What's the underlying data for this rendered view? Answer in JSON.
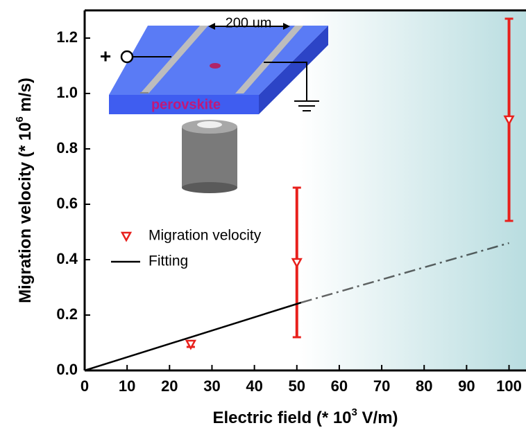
{
  "chart_data": {
    "type": "scatter",
    "xlabel": {
      "text": "Electric field (* 10",
      "sup": "3",
      "unit": " V/m)"
    },
    "ylabel": {
      "text": "Migration velocity (* 10",
      "sup": "6",
      "unit": " m/s)"
    },
    "xlim": [
      0,
      104
    ],
    "ylim": [
      0,
      1.3
    ],
    "xticks": [
      0,
      10,
      20,
      30,
      40,
      50,
      60,
      70,
      80,
      90,
      100
    ],
    "yticks": [
      {
        "value": 0,
        "label": "0.0"
      },
      0.2,
      0.4,
      0.6,
      0.8,
      {
        "value": 1,
        "label": "1.0"
      },
      1.2
    ],
    "series": [
      {
        "name": "Migration velocity",
        "color": "#e8201c",
        "marker": "down-triangle",
        "x": [
          25,
          50,
          100
        ],
        "values": [
          0.095,
          0.39,
          0.905
        ],
        "errors": [
          0.01,
          0.27,
          0.365
        ]
      },
      {
        "name": "Fitting",
        "color": "#000000",
        "type": "line",
        "x": [
          0,
          51,
          100
        ],
        "values": [
          0,
          0.245,
          0.46
        ]
      }
    ],
    "annotations": {
      "distance": "200 um",
      "material": "perovskite",
      "plus": "+"
    }
  }
}
